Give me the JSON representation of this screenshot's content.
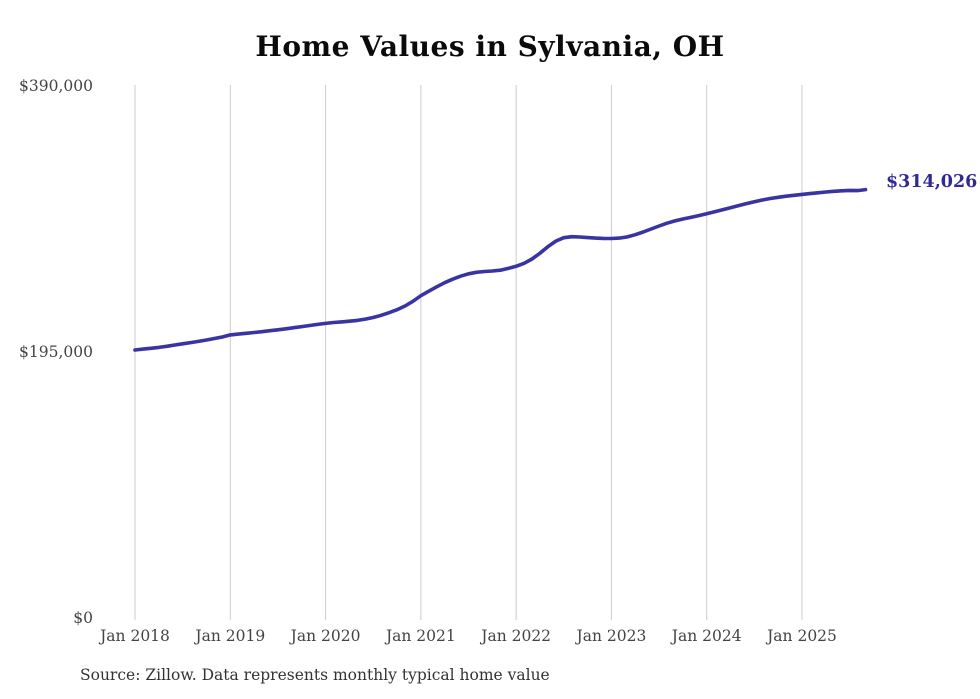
{
  "chart_data": {
    "type": "line",
    "title": "Home Values in Sylvania, OH",
    "source": "Source: Zillow. Data represents monthly typical home value",
    "series_name": "Monthly typical home value",
    "frequency": "monthly",
    "start_month": "2018-01",
    "end_month": "2025-09",
    "end_label": "$314,026",
    "end_value": 314026,
    "ylim": [
      0,
      390000
    ],
    "grid": "vertical-only",
    "legend": "none",
    "line_color": "#3a34a3",
    "end_label_color": "#2f2a96",
    "grid_color": "#cccccc",
    "tick_color": "#444444",
    "title_color": "#0b0b0b",
    "source_color": "#333333",
    "x_tick_labels": [
      "Jan 2018",
      "Jan 2019",
      "Jan 2020",
      "Jan 2021",
      "Jan 2022",
      "Jan 2023",
      "Jan 2024",
      "Jan 2025"
    ],
    "x_tick_month_index": [
      0,
      12,
      24,
      36,
      48,
      60,
      72,
      84
    ],
    "y_ticks": [
      {
        "label": "$390,000",
        "value": 390000
      },
      {
        "label": "$195,000",
        "value": 195000
      },
      {
        "label": "$0",
        "value": 0
      }
    ],
    "values": [
      196500,
      197100,
      197700,
      198400,
      199200,
      200100,
      201000,
      201900,
      202800,
      203800,
      204900,
      206000,
      207500,
      208100,
      208700,
      209300,
      209900,
      210600,
      211300,
      212000,
      212800,
      213600,
      214400,
      215200,
      216000,
      216600,
      217100,
      217600,
      218200,
      219100,
      220300,
      221900,
      223800,
      226000,
      228700,
      232200,
      236300,
      239600,
      242800,
      245800,
      248400,
      250600,
      252300,
      253400,
      254000,
      254400,
      255000,
      256300,
      257800,
      260000,
      263200,
      267400,
      272200,
      276300,
      278800,
      279500,
      279300,
      278900,
      278500,
      278300,
      278200,
      278500,
      279400,
      281000,
      283000,
      285200,
      287400,
      289400,
      291100,
      292500,
      293700,
      295000,
      296300,
      297800,
      299300,
      300800,
      302300,
      303800,
      305200,
      306400,
      307500,
      308400,
      309200,
      309900,
      310500,
      311100,
      311700,
      312300,
      312800,
      313200,
      313500,
      313300,
      314026
    ]
  }
}
